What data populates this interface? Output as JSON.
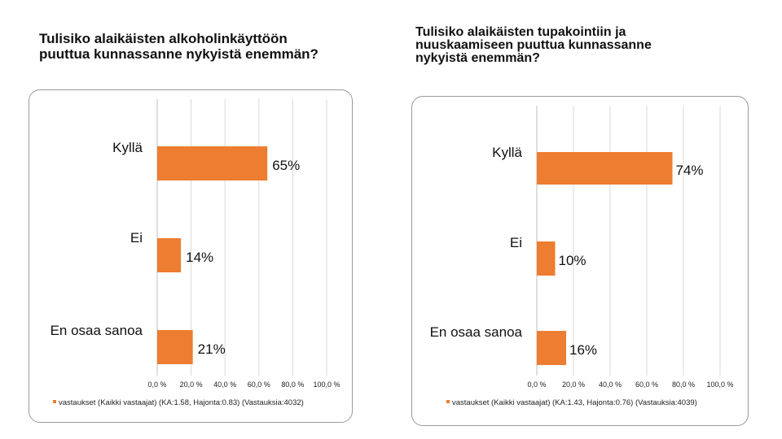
{
  "chart_data": [
    {
      "type": "bar",
      "orientation": "horizontal",
      "title": "Tulisiko alaikäisten alkoholinkäyttöön\npuuttua kunnassanne nykyistä enemmän?",
      "categories": [
        "Kyllä",
        "Ei",
        "En osaa sanoa"
      ],
      "series": [
        {
          "name": "vastaukset (Kaikki vastaajat) (KA:1.58, Hajonta:0.83) (Vastauksia:4032)",
          "values": [
            65,
            14,
            21
          ],
          "labels": [
            "65%",
            "14%",
            "21%"
          ]
        }
      ],
      "xlim": [
        0,
        100
      ],
      "xticks": [
        "0,0 %",
        "20,0 %",
        "40,0 %",
        "60,0 %",
        "80,0 %",
        "100,0 %"
      ],
      "grid": true,
      "legend_position": "bottom-left",
      "bar_color": "#ED7D31"
    },
    {
      "type": "bar",
      "orientation": "horizontal",
      "title": "Tulisiko alaikäisten tupakointiin ja\nnuuskaamiseen puuttua kunnassanne\nnykyistä enemmän?",
      "categories": [
        "Kyllä",
        "Ei",
        "En osaa sanoa"
      ],
      "series": [
        {
          "name": "vastaukset (Kaikki vastaajat) (KA:1.43, Hajonta:0.76) (Vastauksia:4039)",
          "values": [
            74,
            10,
            16
          ],
          "labels": [
            "74%",
            "10%",
            "16%"
          ]
        }
      ],
      "xlim": [
        0,
        100
      ],
      "xticks": [
        "0,0 %",
        "20,0 %",
        "40,0 %",
        "60,0 %",
        "80,0 %",
        "100,0 %"
      ],
      "grid": true,
      "legend_position": "bottom-left",
      "bar_color": "#ED7D31"
    }
  ]
}
